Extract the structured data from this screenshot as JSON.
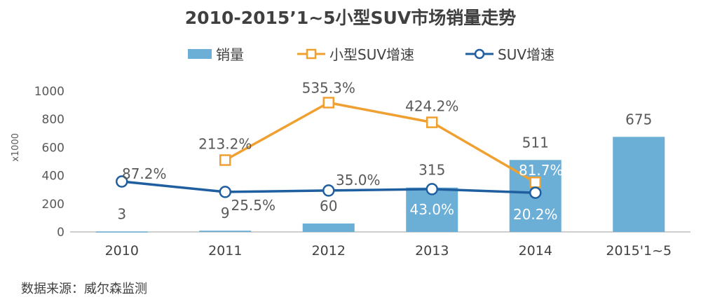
{
  "chart_data": {
    "type": "bar+line",
    "title": "2010-2015’1~5小型SUV市场销量走势",
    "unit_label": "x1000",
    "categories": [
      "2010",
      "2011",
      "2012",
      "2013",
      "2014",
      "2015'1~5"
    ],
    "ylim": [
      0,
      1000
    ],
    "yticks": [
      0,
      200,
      400,
      600,
      800,
      1000
    ],
    "series": [
      {
        "name": "销量",
        "kind": "bar",
        "color": "#6baed6",
        "values": [
          3,
          9,
          60,
          315,
          511,
          675
        ],
        "labels": [
          "3",
          "9",
          "60",
          "315",
          "511",
          "675"
        ]
      },
      {
        "name": "小型SUV增速",
        "kind": "line",
        "color": "#f0a030",
        "values": [
          null,
          213.2,
          535.3,
          424.2,
          81.7,
          null
        ],
        "plot_values": [
          null,
          510,
          918,
          778,
          352,
          null
        ],
        "labels": [
          null,
          "213.2%",
          "535.3%",
          "424.2%",
          "81.7%",
          null
        ]
      },
      {
        "name": "SUV增速",
        "kind": "line",
        "color": "#1f5fa0",
        "values": [
          87.2,
          25.5,
          35.0,
          43.0,
          20.2,
          null
        ],
        "plot_values": [
          358,
          284,
          294,
          304,
          278,
          null
        ],
        "labels": [
          "87.2%",
          "25.5%",
          "35.0%",
          "43.0%",
          "20.2%",
          null
        ]
      }
    ]
  },
  "legend": {
    "bar": "销量",
    "line_small": "小型SUV增速",
    "line_suv": "SUV增速"
  },
  "source": "数据来源：威尔森监测"
}
